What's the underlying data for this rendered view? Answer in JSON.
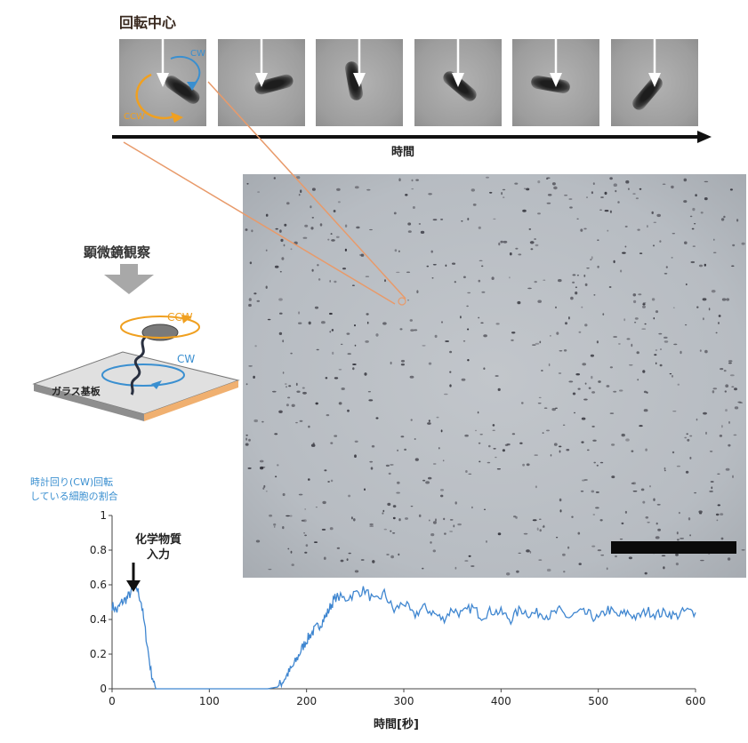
{
  "top_title": "回転中心",
  "frames": [
    {
      "angle": 35,
      "dx": 22,
      "dy": 6
    },
    {
      "angle": -15,
      "dx": 14,
      "dy": 0
    },
    {
      "angle": 80,
      "dx": -6,
      "dy": -4
    },
    {
      "angle": 40,
      "dx": 2,
      "dy": 2
    },
    {
      "angle": 10,
      "dx": -6,
      "dy": 0
    },
    {
      "angle": -50,
      "dx": -8,
      "dy": 10
    }
  ],
  "time_axis_label": "時間",
  "frame_labels": {
    "ccw": "CCW",
    "cw": "CW"
  },
  "observation_label": "顕微鏡観察",
  "schematic": {
    "ccw": "CCW",
    "cw": "CW",
    "glass": "ガラス基板"
  },
  "ratio_label_line1": "時計回り(CW)回転",
  "ratio_label_line2": "している細胞の割合",
  "chem_label_line1": "化学物質",
  "chem_label_line2": "入力",
  "colors": {
    "ccw": "#f0a020",
    "cw": "#3a8fd0",
    "line": "#3f86d0",
    "zoom": "#e89a6a"
  },
  "chart_data": {
    "type": "line",
    "xlabel": "時間[秒]",
    "ylabel": "",
    "xlim": [
      0,
      600
    ],
    "ylim": [
      0,
      1
    ],
    "xticks": [
      0,
      100,
      200,
      300,
      400,
      500,
      600
    ],
    "yticks": [
      0,
      0.2,
      0.4,
      0.6,
      0.8,
      1
    ],
    "ytick_labels": [
      "0",
      "0.2",
      "0.4",
      "0.6",
      "0.8",
      "1"
    ],
    "grid": false,
    "series": [
      {
        "x": [
          0,
          5,
          10,
          15,
          20,
          25,
          30,
          35,
          40,
          45,
          50,
          60,
          80,
          100,
          120,
          140,
          160,
          170,
          175,
          180,
          185,
          190,
          195,
          200,
          205,
          210,
          215,
          220,
          225,
          230,
          240,
          250,
          260,
          270,
          280,
          290,
          300,
          310,
          320,
          330,
          340,
          350,
          360,
          370,
          380,
          390,
          400,
          410,
          420,
          430,
          440,
          450,
          460,
          470,
          480,
          490,
          500,
          510,
          520,
          530,
          540,
          550,
          560,
          570,
          580,
          590,
          600
        ],
        "y": [
          0.48,
          0.45,
          0.5,
          0.52,
          0.56,
          0.59,
          0.5,
          0.3,
          0.1,
          0,
          0,
          0,
          0,
          0,
          0,
          0,
          0,
          0.01,
          0.04,
          0.08,
          0.12,
          0.17,
          0.23,
          0.28,
          0.32,
          0.35,
          0.38,
          0.42,
          0.48,
          0.53,
          0.52,
          0.55,
          0.57,
          0.5,
          0.55,
          0.45,
          0.5,
          0.42,
          0.47,
          0.44,
          0.4,
          0.46,
          0.43,
          0.47,
          0.42,
          0.45,
          0.44,
          0.4,
          0.46,
          0.43,
          0.44,
          0.42,
          0.45,
          0.41,
          0.44,
          0.43,
          0.4,
          0.46,
          0.42,
          0.44,
          0.41,
          0.45,
          0.43,
          0.44,
          0.42,
          0.45,
          0.44
        ]
      }
    ]
  }
}
